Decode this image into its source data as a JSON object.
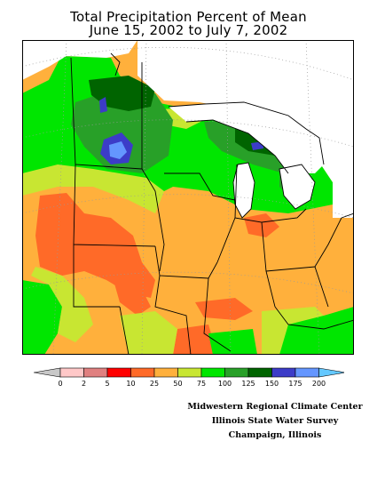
{
  "title": {
    "line1": "Total Precipitation Percent of Mean",
    "line2": "June 15, 2002 to July 7, 2002"
  },
  "legend": {
    "labels": [
      "0",
      "2",
      "5",
      "10",
      "25",
      "50",
      "75",
      "100",
      "125",
      "150",
      "175",
      "200"
    ],
    "colors": [
      "#c8c8c8",
      "#ffc8c8",
      "#e08080",
      "#ff0000",
      "#ff6a28",
      "#ffb03c",
      "#c8e632",
      "#00e600",
      "#28a028",
      "#006400",
      "#3c3cc8",
      "#6496ff",
      "#64c8ff"
    ]
  },
  "credits": {
    "line1": "Midwestern Regional Climate Center",
    "line2": "Illinois State Water Survey",
    "line3": "Champaign, Illinois"
  },
  "colors": {
    "frame": "#000000",
    "state_lines": "#000000",
    "lakes": "#ffffff",
    "background": "#ffffff"
  }
}
